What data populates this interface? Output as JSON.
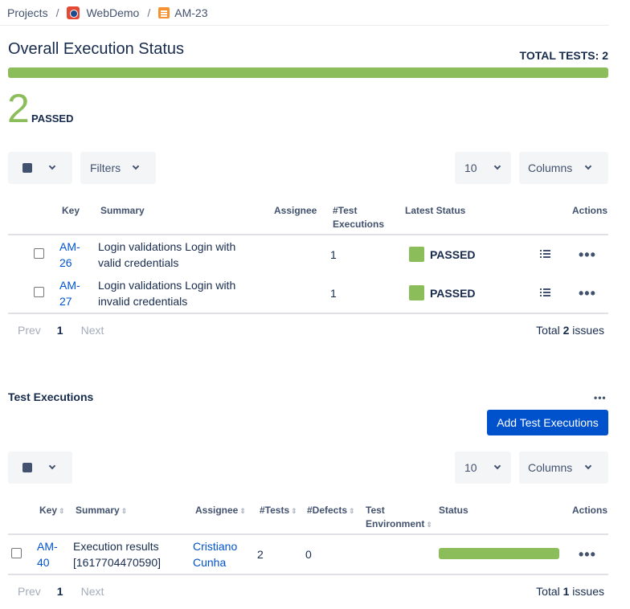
{
  "breadcrumb": {
    "projects": "Projects",
    "project": "WebDemo",
    "issue": "AM-23",
    "separator": "/"
  },
  "overall": {
    "title": "Overall Execution Status",
    "total_tests": "TOTAL TESTS: 2",
    "passed_fraction": 1.0,
    "passed_count": "2",
    "passed_label": "PASSED"
  },
  "tests_table": {
    "filters_label": "Filters",
    "page_size": "10",
    "columns_label": "Columns",
    "headers": {
      "key": "Key",
      "summary": "Summary",
      "assignee": "Assignee",
      "executions": "#Test Executions",
      "latest_status": "Latest Status",
      "actions": "Actions"
    },
    "rows": [
      {
        "key": "AM-26",
        "summary": "Login validations Login with valid credentials",
        "assignee": "",
        "executions": "1",
        "status": "PASSED"
      },
      {
        "key": "AM-27",
        "summary": "Login validations Login with invalid credentials",
        "assignee": "",
        "executions": "1",
        "status": "PASSED"
      }
    ],
    "pager": {
      "prev": "Prev",
      "page": "1",
      "next": "Next"
    },
    "total": {
      "prefix": "Total ",
      "count": "2",
      "suffix": " issues"
    }
  },
  "executions": {
    "title": "Test Executions",
    "add_button": "Add Test Executions",
    "page_size": "10",
    "columns_label": "Columns",
    "headers": {
      "key": "Key",
      "summary": "Summary",
      "assignee": "Assignee",
      "tests": "#Tests",
      "defects": "#Defects",
      "environment": "Test Environment",
      "status": "Status",
      "actions": "Actions"
    },
    "rows": [
      {
        "key": "AM-40",
        "summary": "Execution results [1617704470590]",
        "assignee": "Cristiano Cunha",
        "tests": "2",
        "defects": "0",
        "environment": "",
        "status_passed_fraction": 1.0
      }
    ],
    "pager": {
      "prev": "Prev",
      "page": "1",
      "next": "Next"
    },
    "total": {
      "prefix": "Total ",
      "count": "1",
      "suffix": " issues"
    }
  },
  "colors": {
    "passed": "#8bbd5a",
    "link": "#0052cc",
    "primary": "#0052cc"
  }
}
